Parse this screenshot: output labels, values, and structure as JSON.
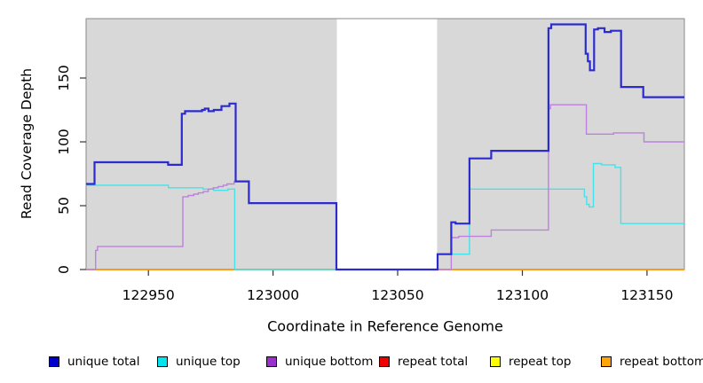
{
  "chart_data": {
    "type": "line",
    "step": true,
    "title": "",
    "xlabel": "Coordinate in Reference Genome",
    "ylabel": "Read Coverage Depth",
    "xlim": [
      122925,
      123165
    ],
    "ylim": [
      0,
      196.5
    ],
    "x_ticks": [
      122950,
      123000,
      123050,
      123100,
      123150
    ],
    "y_ticks": [
      0,
      50,
      100,
      150
    ],
    "grid": false,
    "legend_position": "bottom",
    "plot_background": "#d8d8d8",
    "border_color": "#8a8a8a",
    "tick_color": "#333333",
    "masked_region": {
      "x_start": 123025.6,
      "x_end": 123065.8,
      "color": "#ffffff"
    },
    "draw_order": [
      "repeat total",
      "repeat top",
      "repeat bottom",
      "unique top",
      "unique bottom",
      "unique total"
    ],
    "series": [
      {
        "name": "unique total",
        "swatch_color": "#0000cc",
        "line_color": "#2b2bd0",
        "line_width": 2.2,
        "points": [
          [
            122925,
            67
          ],
          [
            122928.4,
            84
          ],
          [
            122957.9,
            82
          ],
          [
            122963.4,
            122
          ],
          [
            122964.7,
            124
          ],
          [
            122971.5,
            125
          ],
          [
            122972.6,
            126
          ],
          [
            122974.1,
            124
          ],
          [
            122976.2,
            125
          ],
          [
            122979.3,
            128
          ],
          [
            122982.5,
            130
          ],
          [
            122985,
            69
          ],
          [
            122990.3,
            52
          ],
          [
            123025.4,
            0
          ],
          [
            123066,
            12
          ],
          [
            123071.5,
            37
          ],
          [
            123073.2,
            36
          ],
          [
            123078.8,
            87
          ],
          [
            123087.5,
            93
          ],
          [
            123110.5,
            189
          ],
          [
            123111.6,
            192
          ],
          [
            123125.4,
            169
          ],
          [
            123126.3,
            163
          ],
          [
            123127.1,
            156
          ],
          [
            123128.8,
            188
          ],
          [
            123130.3,
            189
          ],
          [
            123133,
            186
          ],
          [
            123135.5,
            187
          ],
          [
            123139.6,
            143
          ],
          [
            123148.5,
            135
          ]
        ]
      },
      {
        "name": "unique top",
        "swatch_color": "#00e5ee",
        "line_color": "#45e2e9",
        "line_width": 1.4,
        "points": [
          [
            122925,
            66
          ],
          [
            122958,
            64
          ],
          [
            122971.9,
            63
          ],
          [
            122976.2,
            62
          ],
          [
            122981.9,
            63
          ],
          [
            122984.6,
            0
          ],
          [
            123066,
            12
          ],
          [
            123078.8,
            63
          ],
          [
            123124.9,
            57
          ],
          [
            123125.8,
            51
          ],
          [
            123126.8,
            49
          ],
          [
            123128.5,
            83
          ],
          [
            123131.8,
            82
          ],
          [
            123137.2,
            80
          ],
          [
            123139.5,
            36
          ]
        ]
      },
      {
        "name": "unique bottom",
        "swatch_color": "#9932cc",
        "line_color": "#bd80de",
        "line_width": 1.4,
        "points": [
          [
            122925,
            0
          ],
          [
            122928.8,
            15
          ],
          [
            122929.6,
            18
          ],
          [
            122963.8,
            57
          ],
          [
            122966,
            58
          ],
          [
            122968.2,
            59
          ],
          [
            122970,
            60
          ],
          [
            122972,
            61
          ],
          [
            122974,
            63
          ],
          [
            122976,
            64
          ],
          [
            122978,
            65
          ],
          [
            122980,
            66
          ],
          [
            122981.5,
            67
          ],
          [
            122984.4,
            69
          ],
          [
            122990.3,
            52
          ],
          [
            123025.4,
            0
          ],
          [
            123071.5,
            25
          ],
          [
            123074.5,
            26
          ],
          [
            123087.5,
            31
          ],
          [
            123110.5,
            126
          ],
          [
            123111.3,
            129
          ],
          [
            123125.7,
            106
          ],
          [
            123136.6,
            107
          ],
          [
            123148.8,
            100
          ]
        ]
      },
      {
        "name": "repeat total",
        "swatch_color": "#ee0000",
        "line_color": "#ee0000",
        "line_width": 1.2,
        "points": [
          [
            122925,
            0
          ]
        ]
      },
      {
        "name": "repeat top",
        "swatch_color": "#ffff00",
        "line_color": "#ffff00",
        "line_width": 1.2,
        "points": [
          [
            122925,
            0
          ]
        ]
      },
      {
        "name": "repeat bottom",
        "swatch_color": "#ffa50a",
        "line_color": "#ff950c",
        "line_width": 1.8,
        "points": [
          [
            122925,
            0
          ]
        ]
      }
    ]
  }
}
